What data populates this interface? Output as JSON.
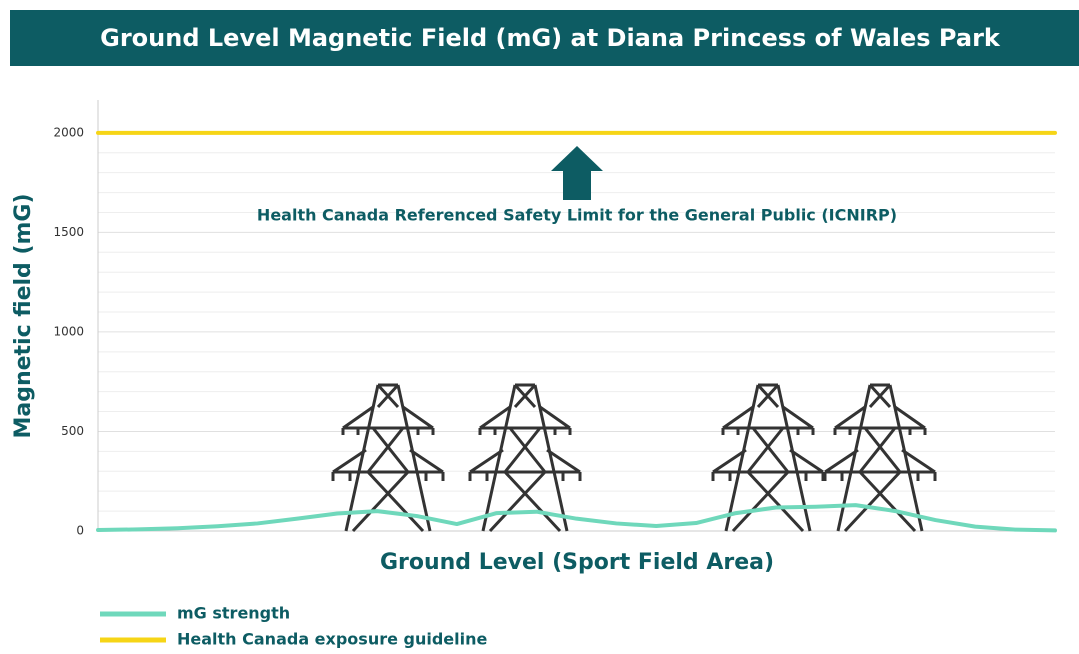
{
  "chart_data": {
    "type": "line",
    "title": "Ground Level Magnetic Field (mG) at Diana Princess of Wales Park",
    "y_label": "Magnetic field (mG)",
    "x_label": "Ground Level (Sport Field Area)",
    "annotation": "Health Canada Referenced Safety Limit for the General Public (ICNIRP)",
    "categories": [
      null,
      null,
      null,
      null,
      null,
      null,
      null,
      null,
      null,
      null,
      null,
      null,
      null,
      null,
      null,
      null,
      null,
      null,
      null,
      null,
      null,
      null,
      null,
      null,
      null
    ],
    "series": [
      {
        "name": "mG strength",
        "color": "#6fd8bb",
        "values": [
          5,
          8,
          14,
          24,
          38,
          62,
          88,
          100,
          75,
          35,
          90,
          97,
          62,
          38,
          25,
          40,
          90,
          118,
          122,
          130,
          100,
          55,
          22,
          7,
          3
        ]
      },
      {
        "name": "Health Canada exposure guideline",
        "color": "#f6d516",
        "values": [
          2000,
          2000,
          2000,
          2000,
          2000,
          2000,
          2000,
          2000,
          2000,
          2000,
          2000,
          2000,
          2000,
          2000,
          2000,
          2000,
          2000,
          2000,
          2000,
          2000,
          2000,
          2000,
          2000,
          2000,
          2000
        ]
      }
    ],
    "ylim": [
      0,
      2150
    ],
    "yticks": [
      0,
      500,
      1000,
      1500,
      2000
    ],
    "grid": true
  }
}
